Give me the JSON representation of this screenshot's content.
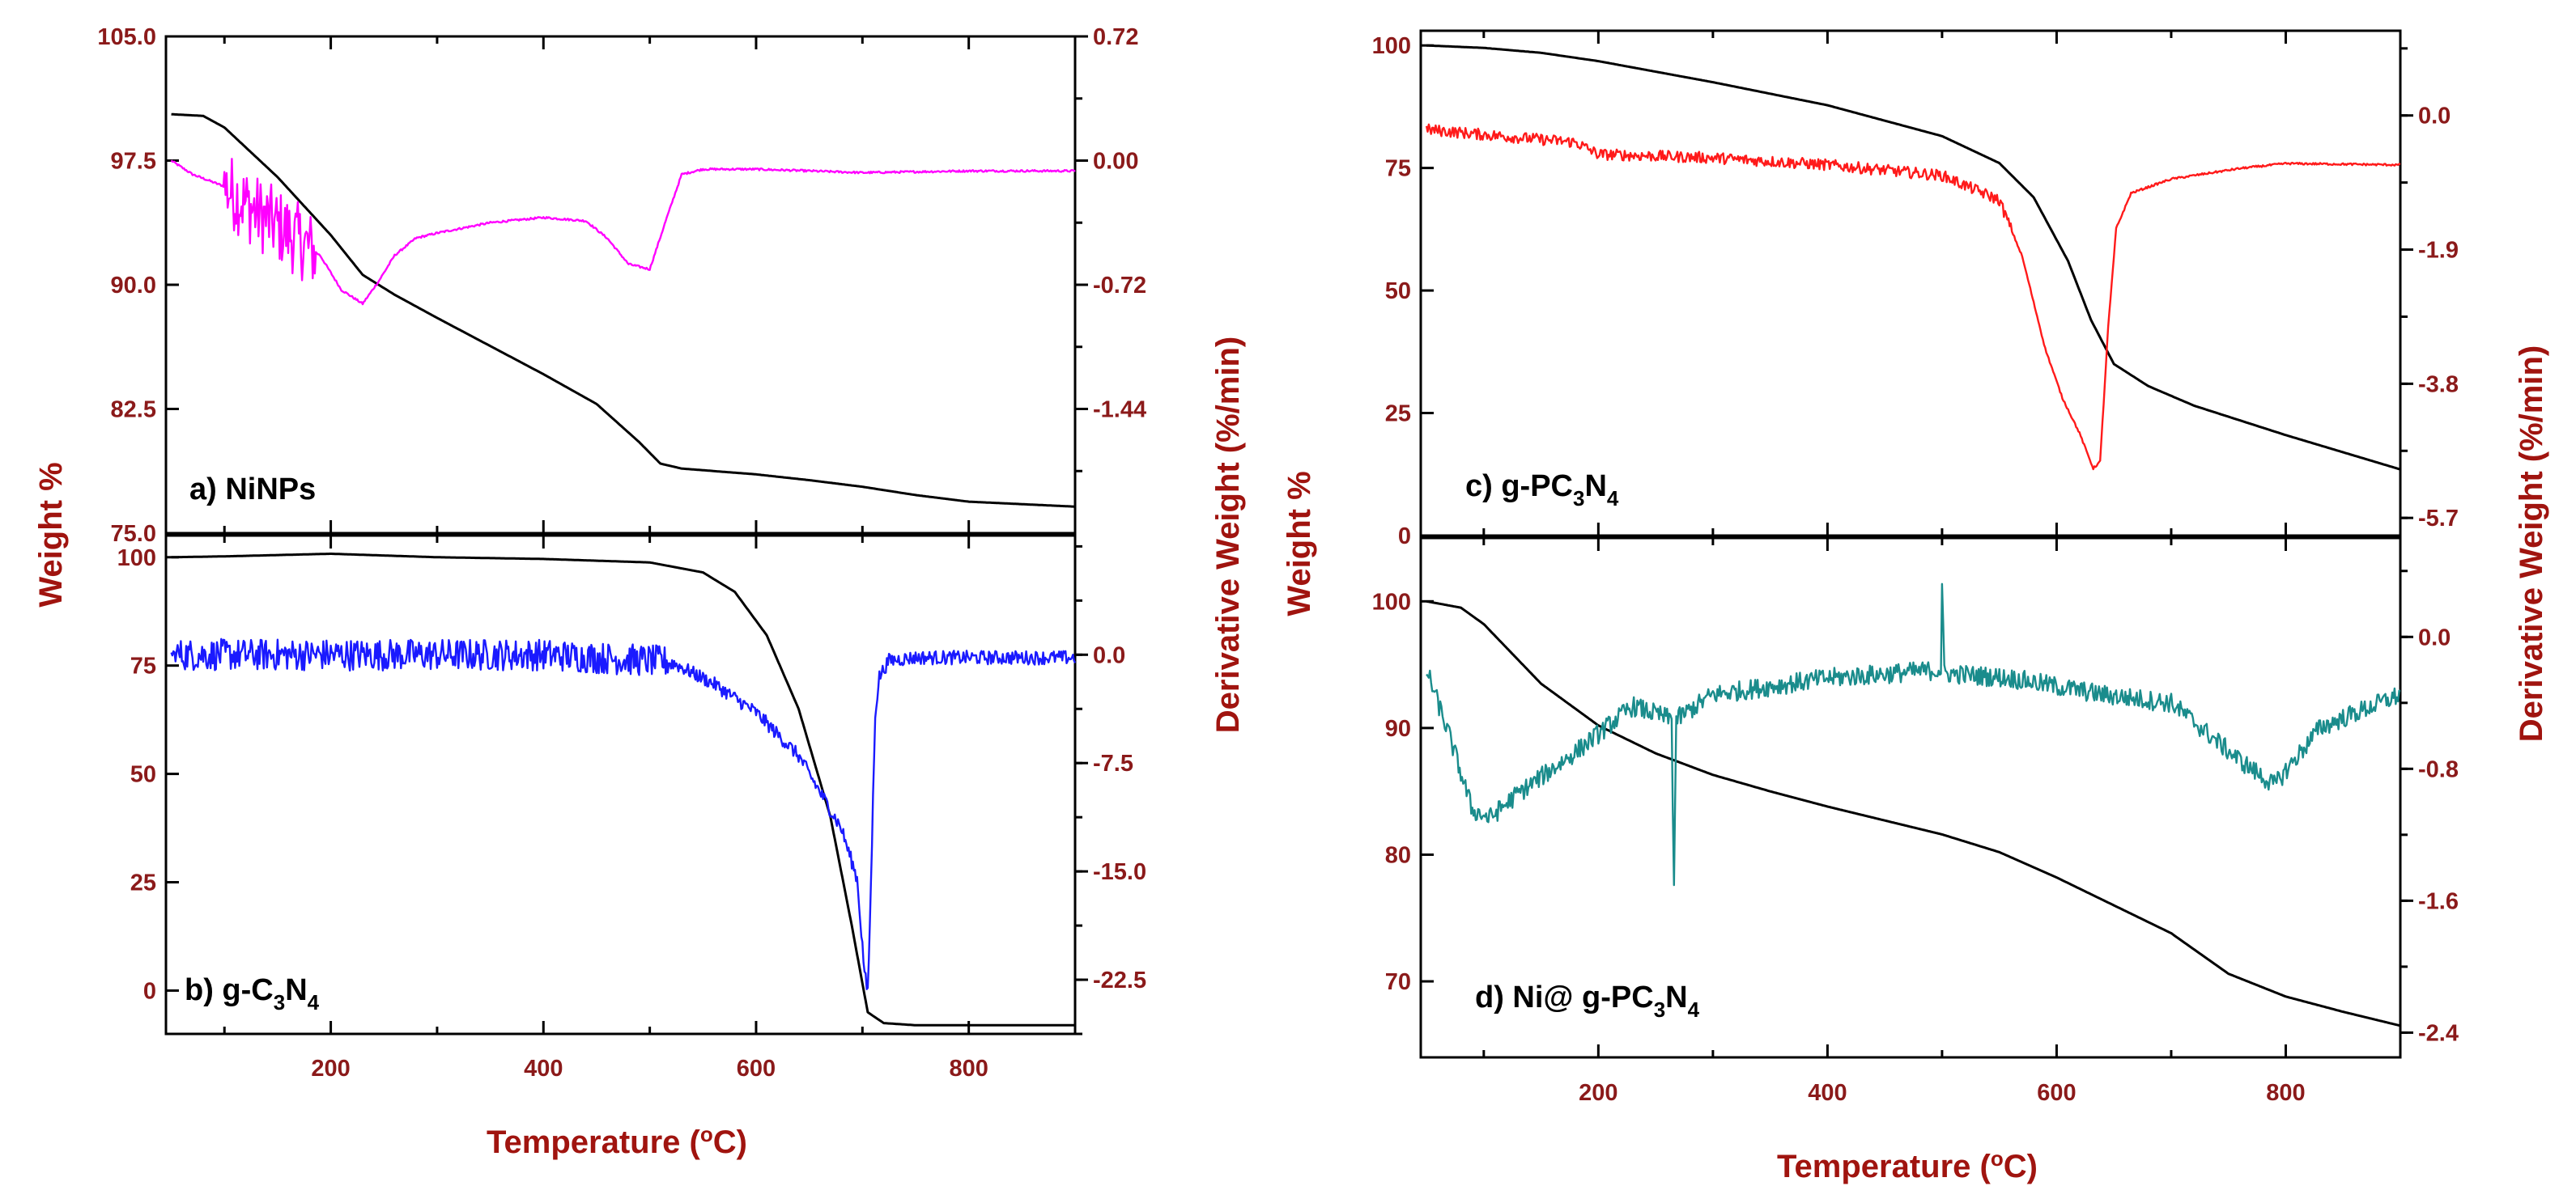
{
  "colors": {
    "axis_label": "#A0140F",
    "tick_label": "#8B1A1A",
    "weight_curve": "#000000"
  },
  "figure_labels": {
    "left_y": "Weight %",
    "left_y2": "Derivative Weight (%/min)",
    "right_y": "Weight %",
    "right_y2": "Derivative Weight (%/min)",
    "left_x": "Temperature (",
    "right_x": "Temperature (",
    "degree_o": "o",
    "celsius": "C)"
  },
  "chart_data": [
    {
      "id": "a",
      "type": "line",
      "panel_label": "a) NiNPs",
      "xlim": [
        45,
        900
      ],
      "xticks": [
        200,
        400,
        600,
        800
      ],
      "xtick_labels": [
        "200",
        "400",
        "600",
        "800"
      ],
      "ylim": [
        75.0,
        105.0
      ],
      "yticks": [
        75.0,
        82.5,
        90.0,
        97.5,
        105.0
      ],
      "ytick_labels": [
        "75.0",
        "82.5",
        "90.0",
        "97.5",
        "105.0"
      ],
      "y2lim": [
        -2.16,
        0.72
      ],
      "y2ticks": [
        -1.44,
        -0.72,
        0.0,
        0.72
      ],
      "y2tick_labels": [
        "-1.44",
        "-0.72",
        "0.00",
        "0.72"
      ],
      "series": [
        {
          "name": "Weight %",
          "axis": "left",
          "color": "#000000",
          "noise": 0,
          "x": [
            50,
            80,
            100,
            150,
            200,
            230,
            260,
            300,
            350,
            400,
            450,
            490,
            510,
            530,
            560,
            600,
            650,
            700,
            750,
            800,
            850,
            900
          ],
          "y": [
            100.3,
            100.2,
            99.5,
            96.5,
            93.0,
            90.6,
            89.4,
            88.0,
            86.3,
            84.6,
            82.8,
            80.5,
            79.2,
            78.9,
            78.75,
            78.55,
            78.2,
            77.8,
            77.3,
            76.9,
            76.75,
            76.6
          ]
        },
        {
          "name": "Derivative Weight",
          "axis": "right",
          "color": "#FF00FF",
          "noise": 0.05,
          "noise_range": [
            100,
            185
          ],
          "noise_amp": 0.22,
          "x": [
            50,
            70,
            100,
            130,
            160,
            190,
            210,
            230,
            245,
            260,
            280,
            300,
            350,
            400,
            440,
            460,
            480,
            500,
            515,
            530,
            550,
            600,
            700,
            800,
            900
          ],
          "y": [
            0.0,
            -0.08,
            -0.15,
            -0.3,
            -0.42,
            -0.55,
            -0.75,
            -0.83,
            -0.7,
            -0.55,
            -0.45,
            -0.42,
            -0.36,
            -0.33,
            -0.35,
            -0.45,
            -0.6,
            -0.63,
            -0.35,
            -0.08,
            -0.05,
            -0.05,
            -0.07,
            -0.06,
            -0.06
          ]
        }
      ]
    },
    {
      "id": "b",
      "type": "line",
      "panel_label_pre": "b) g-C",
      "panel_label_sub1": "3",
      "panel_label_mid": "N",
      "panel_label_sub2": "4",
      "xlim": [
        45,
        900
      ],
      "xticks": [
        200,
        400,
        600,
        800
      ],
      "xtick_labels": [
        "200",
        "400",
        "600",
        "800"
      ],
      "ylim": [
        -10,
        105
      ],
      "yticks": [
        0,
        25,
        50,
        75,
        100
      ],
      "ytick_labels": [
        "0",
        "25",
        "50",
        "75",
        "100"
      ],
      "y2lim": [
        -26.25,
        8.25
      ],
      "y2ticks": [
        -22.5,
        -15.0,
        -7.5,
        0.0
      ],
      "y2tick_labels": [
        "-22.5",
        "-15.0",
        "-7.5",
        "0.0"
      ],
      "series": [
        {
          "name": "Weight %",
          "axis": "left",
          "color": "#000000",
          "noise": 0,
          "x": [
            50,
            100,
            150,
            200,
            300,
            400,
            500,
            550,
            580,
            610,
            640,
            670,
            690,
            705,
            720,
            750,
            800,
            900
          ],
          "y": [
            100,
            100.2,
            100.5,
            100.8,
            100.0,
            99.6,
            98.8,
            96.5,
            92.0,
            82.0,
            65.0,
            40.0,
            15.0,
            -5.0,
            -7.5,
            -8.0,
            -8.0,
            -8.0
          ]
        },
        {
          "name": "Derivative Weight",
          "axis": "right",
          "color": "#1A1AFF",
          "noise": 0.35,
          "noise_range": [
            55,
            520
          ],
          "noise_amp": 1.1,
          "x": [
            50,
            200,
            400,
            520,
            560,
            600,
            640,
            660,
            680,
            695,
            702,
            705,
            708,
            712,
            716,
            725,
            750,
            900
          ],
          "y": [
            0.0,
            0.0,
            0.0,
            -0.5,
            -2.0,
            -4.0,
            -7.0,
            -9.5,
            -12.0,
            -15.5,
            -22.0,
            -23.5,
            -16.0,
            -4.0,
            -1.5,
            -0.4,
            -0.2,
            -0.2
          ]
        }
      ]
    },
    {
      "id": "c",
      "type": "line",
      "panel_label_pre": "c)  g-PC",
      "panel_label_sub1": "3",
      "panel_label_mid": "N",
      "panel_label_sub2": "4",
      "xlim": [
        45,
        900
      ],
      "xticks": [
        200,
        400,
        600,
        800
      ],
      "xtick_labels": [
        "200",
        "400",
        "600",
        "800"
      ],
      "ylim": [
        0,
        103
      ],
      "yticks": [
        0,
        25,
        50,
        75,
        100
      ],
      "ytick_labels": [
        "0",
        "25",
        "50",
        "75",
        "100"
      ],
      "y2lim": [
        -5.95,
        1.2
      ],
      "y2ticks": [
        -5.7,
        -3.8,
        -1.9,
        0.0
      ],
      "y2tick_labels": [
        "-5.7",
        "-3.8",
        "-1.9",
        "0.0"
      ],
      "series": [
        {
          "name": "Weight %",
          "axis": "left",
          "color": "#000000",
          "noise": 0,
          "x": [
            50,
            100,
            150,
            200,
            300,
            400,
            500,
            550,
            580,
            610,
            630,
            650,
            680,
            720,
            800,
            900
          ],
          "y": [
            100,
            99.5,
            98.5,
            96.8,
            92.5,
            87.8,
            81.5,
            76.0,
            69.0,
            56.0,
            44.0,
            35.0,
            30.5,
            26.5,
            20.5,
            13.5
          ]
        },
        {
          "name": "Derivative Weight",
          "axis": "right",
          "color": "#FF1A1A",
          "noise": 0.05,
          "noise_range": [
            50,
            560
          ],
          "noise_amp": 0.08,
          "x": [
            50,
            120,
            180,
            200,
            300,
            400,
            500,
            550,
            570,
            590,
            605,
            620,
            632,
            638,
            645,
            652,
            665,
            700,
            760,
            800,
            900
          ],
          "y": [
            -0.2,
            -0.3,
            -0.38,
            -0.55,
            -0.6,
            -0.7,
            -0.85,
            -1.2,
            -2.0,
            -3.3,
            -4.0,
            -4.5,
            -5.0,
            -4.9,
            -3.0,
            -1.6,
            -1.1,
            -0.9,
            -0.75,
            -0.68,
            -0.7
          ]
        }
      ]
    },
    {
      "id": "d",
      "type": "line",
      "panel_label_pre": "d)  Ni@ g-PC",
      "panel_label_sub1": "3",
      "panel_label_mid": "N",
      "panel_label_sub2": "4",
      "xlim": [
        45,
        900
      ],
      "xticks": [
        200,
        400,
        600,
        800
      ],
      "xtick_labels": [
        "200",
        "400",
        "600",
        "800"
      ],
      "ylim": [
        64,
        105
      ],
      "yticks": [
        70,
        80,
        90,
        100
      ],
      "ytick_labels": [
        "70",
        "80",
        "90",
        "100"
      ],
      "y2lim": [
        -2.55,
        0.6
      ],
      "y2ticks": [
        -2.4,
        -1.6,
        -0.8,
        0.0
      ],
      "y2tick_labels": [
        "-2.4",
        "-1.6",
        "-0.8",
        "0.0"
      ],
      "series": [
        {
          "name": "Weight %",
          "axis": "left",
          "color": "#000000",
          "noise": 0,
          "x": [
            50,
            80,
            100,
            150,
            200,
            250,
            300,
            350,
            400,
            450,
            500,
            550,
            600,
            650,
            700,
            750,
            800,
            850,
            900
          ],
          "y": [
            100,
            99.5,
            98.2,
            93.5,
            90.2,
            88.0,
            86.3,
            85.0,
            83.8,
            82.7,
            81.6,
            80.2,
            78.2,
            76.0,
            73.8,
            70.6,
            68.8,
            67.6,
            66.5
          ]
        },
        {
          "name": "Derivative Weight",
          "axis": "right",
          "color": "#1A8C8C",
          "noise": 0.06,
          "noise_range": [
            50,
            900
          ],
          "noise_amp": 0.06,
          "x": [
            50,
            70,
            90,
            105,
            130,
            180,
            230,
            264,
            266,
            268,
            300,
            400,
            499,
            500,
            502,
            560,
            640,
            700,
            760,
            790,
            830,
            900
          ],
          "y": [
            -0.2,
            -0.6,
            -1.05,
            -1.1,
            -0.95,
            -0.7,
            -0.42,
            -0.5,
            -1.5,
            -0.5,
            -0.35,
            -0.25,
            -0.2,
            0.3,
            -0.22,
            -0.25,
            -0.35,
            -0.4,
            -0.75,
            -0.9,
            -0.55,
            -0.35
          ]
        }
      ]
    }
  ]
}
